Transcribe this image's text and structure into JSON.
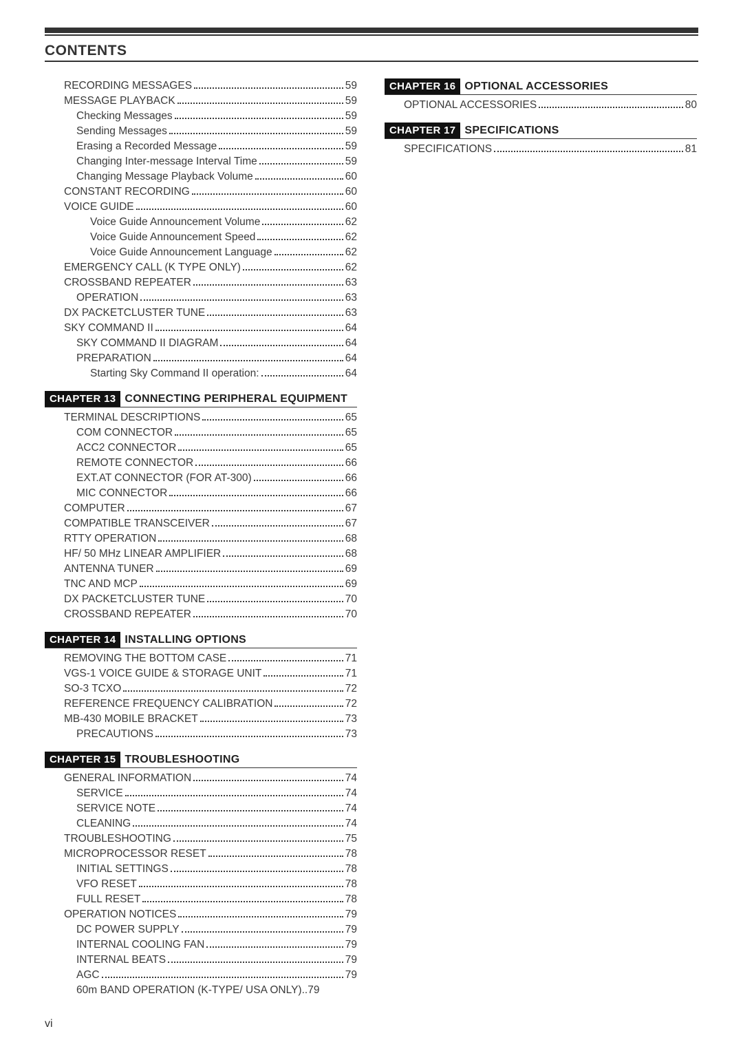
{
  "header": {
    "title": "CONTENTS"
  },
  "footer": {
    "page": "vi"
  },
  "left": {
    "pre_items": [
      {
        "label": "RECORDING MESSAGES",
        "page": "59",
        "indent": 0
      },
      {
        "label": "MESSAGE PLAYBACK",
        "page": "59",
        "indent": 0
      },
      {
        "label": "Checking Messages",
        "page": "59",
        "indent": 1
      },
      {
        "label": "Sending Messages",
        "page": "59",
        "indent": 1
      },
      {
        "label": "Erasing a Recorded Message",
        "page": "59",
        "indent": 1
      },
      {
        "label": "Changing Inter-message Interval Time",
        "page": "59",
        "indent": 1
      },
      {
        "label": "Changing Message Playback Volume",
        "page": "60",
        "indent": 1
      },
      {
        "label": "CONSTANT RECORDING",
        "page": "60",
        "indent": 0
      },
      {
        "label": "VOICE GUIDE",
        "page": "60",
        "indent": 0
      },
      {
        "label": "Voice Guide Announcement Volume",
        "page": "62",
        "indent": 2
      },
      {
        "label": "Voice Guide Announcement Speed",
        "page": "62",
        "indent": 2
      },
      {
        "label": "Voice Guide Announcement Language",
        "page": "62",
        "indent": 2
      },
      {
        "label": "EMERGENCY CALL (K TYPE ONLY)",
        "page": "62",
        "indent": 0
      },
      {
        "label": "CROSSBAND REPEATER",
        "page": "63",
        "indent": 0
      },
      {
        "label": "OPERATION",
        "page": "63",
        "indent": 1
      },
      {
        "label": "DX PACKETCLUSTER TUNE",
        "page": "63",
        "indent": 0
      },
      {
        "label": "SKY COMMAND II",
        "page": "64",
        "indent": 0
      },
      {
        "label": "SKY COMMAND II DIAGRAM",
        "page": "64",
        "indent": 1
      },
      {
        "label": "PREPARATION",
        "page": "64",
        "indent": 1
      },
      {
        "label": "Starting Sky Command II operation:",
        "page": "64",
        "indent": 2
      }
    ],
    "chapters": [
      {
        "badge": "CHAPTER 13",
        "title": "CONNECTING PERIPHERAL EQUIPMENT",
        "items": [
          {
            "label": "TERMINAL DESCRIPTIONS",
            "page": "65",
            "indent": 0
          },
          {
            "label": "COM CONNECTOR",
            "page": "65",
            "indent": 1
          },
          {
            "label": "ACC2 CONNECTOR",
            "page": "65",
            "indent": 1
          },
          {
            "label": "REMOTE CONNECTOR",
            "page": "66",
            "indent": 1
          },
          {
            "label": "EXT.AT CONNECTOR (FOR AT-300)",
            "page": "66",
            "indent": 1
          },
          {
            "label": "MIC CONNECTOR",
            "page": "66",
            "indent": 1
          },
          {
            "label": "COMPUTER",
            "page": "67",
            "indent": 0
          },
          {
            "label": "COMPATIBLE TRANSCEIVER",
            "page": "67",
            "indent": 0
          },
          {
            "label": "RTTY OPERATION",
            "page": "68",
            "indent": 0
          },
          {
            "label": "HF/ 50 MHz LINEAR AMPLIFIER",
            "page": "68",
            "indent": 0
          },
          {
            "label": "ANTENNA TUNER",
            "page": "69",
            "indent": 0
          },
          {
            "label": "TNC AND MCP",
            "page": "69",
            "indent": 0
          },
          {
            "label": "DX PACKETCLUSTER TUNE",
            "page": "70",
            "indent": 0
          },
          {
            "label": "CROSSBAND REPEATER",
            "page": "70",
            "indent": 0
          }
        ]
      },
      {
        "badge": "CHAPTER 14",
        "title": "INSTALLING OPTIONS",
        "items": [
          {
            "label": "REMOVING THE BOTTOM CASE",
            "page": "71",
            "indent": 0
          },
          {
            "label": "VGS-1 VOICE GUIDE & STORAGE UNIT",
            "page": "71",
            "indent": 0
          },
          {
            "label": "SO-3 TCXO",
            "page": "72",
            "indent": 0
          },
          {
            "label": "REFERENCE FREQUENCY CALIBRATION",
            "page": "72",
            "indent": 0
          },
          {
            "label": "MB-430 MOBILE BRACKET",
            "page": "73",
            "indent": 0
          },
          {
            "label": "PRECAUTIONS",
            "page": "73",
            "indent": 1
          }
        ]
      },
      {
        "badge": "CHAPTER 15",
        "title": "TROUBLESHOOTING",
        "items": [
          {
            "label": "GENERAL INFORMATION",
            "page": "74",
            "indent": 0
          },
          {
            "label": "SERVICE",
            "page": "74",
            "indent": 1
          },
          {
            "label": "SERVICE NOTE",
            "page": "74",
            "indent": 1
          },
          {
            "label": "CLEANING",
            "page": "74",
            "indent": 1
          },
          {
            "label": "TROUBLESHOOTING",
            "page": "75",
            "indent": 0
          },
          {
            "label": "MICROPROCESSOR RESET",
            "page": "78",
            "indent": 0
          },
          {
            "label": "INITIAL SETTINGS",
            "page": "78",
            "indent": 1
          },
          {
            "label": "VFO RESET",
            "page": "78",
            "indent": 1
          },
          {
            "label": "FULL RESET",
            "page": "78",
            "indent": 1
          },
          {
            "label": "OPERATION NOTICES",
            "page": "79",
            "indent": 0
          },
          {
            "label": "DC POWER SUPPLY",
            "page": "79",
            "indent": 1
          },
          {
            "label": "INTERNAL COOLING FAN",
            "page": "79",
            "indent": 1
          },
          {
            "label": "INTERNAL BEATS",
            "page": "79",
            "indent": 1
          },
          {
            "label": "AGC",
            "page": "79",
            "indent": 1
          },
          {
            "label": "60m BAND OPERATION (K-TYPE/ USA ONLY)",
            "page": "79",
            "indent": 1,
            "tight": true
          }
        ]
      }
    ]
  },
  "right": {
    "chapters": [
      {
        "badge": "CHAPTER 16",
        "title": "OPTIONAL ACCESSORIES",
        "items": [
          {
            "label": "OPTIONAL ACCESSORIES",
            "page": "80",
            "indent": 0
          }
        ]
      },
      {
        "badge": "CHAPTER 17",
        "title": "SPECIFICATIONS",
        "items": [
          {
            "label": "SPECIFICATIONS",
            "page": "81",
            "indent": 0
          }
        ]
      }
    ]
  }
}
